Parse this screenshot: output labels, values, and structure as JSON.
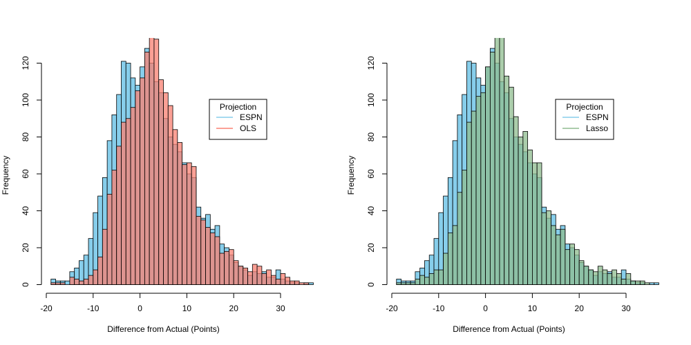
{
  "chart_data": [
    {
      "type": "histogram",
      "title": "",
      "xlabel": "Difference from Actual (Points)",
      "ylabel": "Frequency",
      "xlim": [
        -20,
        37
      ],
      "ylim": [
        0,
        130
      ],
      "xticks": [
        -20,
        -10,
        0,
        10,
        20,
        30
      ],
      "yticks": [
        0,
        20,
        40,
        60,
        80,
        100,
        120
      ],
      "bin_width": 1,
      "bin_start": -19,
      "legend": {
        "title": "Projection",
        "position": "right"
      },
      "series": [
        {
          "name": "ESPN",
          "color": "#87CEEB",
          "counts": [
            3,
            2,
            2,
            2,
            7,
            9,
            13,
            16,
            25,
            39,
            48,
            58,
            78,
            92,
            103,
            121,
            120,
            112,
            108,
            118,
            128,
            120,
            110,
            104,
            90,
            80,
            76,
            72,
            66,
            60,
            58,
            42,
            36,
            38,
            30,
            32,
            22,
            20,
            16,
            12,
            10,
            8,
            5,
            7,
            6,
            7,
            4,
            4,
            8,
            3,
            2,
            1,
            1,
            0,
            1,
            1,
            0,
            1
          ]
        },
        {
          "name": "OLS",
          "color": "#FA8072",
          "counts": [
            1,
            1,
            1,
            0,
            4,
            3,
            2,
            3,
            5,
            8,
            15,
            30,
            49,
            62,
            75,
            88,
            90,
            96,
            105,
            112,
            126,
            135,
            133,
            111,
            104,
            97,
            84,
            77,
            65,
            66,
            64,
            37,
            35,
            31,
            28,
            26,
            17,
            18,
            19,
            13,
            10,
            9,
            7,
            11,
            10,
            6,
            8,
            5,
            3,
            6,
            4,
            2,
            2,
            1,
            1,
            0,
            0,
            0
          ]
        }
      ]
    },
    {
      "type": "histogram",
      "title": "",
      "xlabel": "Difference from Actual (Points)",
      "ylabel": "Frequency",
      "xlim": [
        -20,
        37
      ],
      "ylim": [
        0,
        130
      ],
      "xticks": [
        -20,
        -10,
        0,
        10,
        20,
        30
      ],
      "yticks": [
        0,
        20,
        40,
        60,
        80,
        100,
        120
      ],
      "bin_width": 1,
      "bin_start": -19,
      "legend": {
        "title": "Projection",
        "position": "right"
      },
      "series": [
        {
          "name": "ESPN",
          "color": "#87CEEB",
          "counts": [
            3,
            2,
            2,
            2,
            7,
            9,
            13,
            16,
            25,
            39,
            48,
            58,
            78,
            92,
            103,
            121,
            120,
            112,
            108,
            118,
            128,
            120,
            110,
            104,
            90,
            80,
            76,
            72,
            66,
            60,
            58,
            42,
            36,
            38,
            30,
            32,
            22,
            20,
            16,
            12,
            10,
            8,
            5,
            7,
            6,
            7,
            4,
            4,
            8,
            3,
            2,
            1,
            1,
            0,
            1,
            1,
            0,
            1
          ]
        },
        {
          "name": "Lasso",
          "color": "#8FBC8F",
          "counts": [
            1,
            1,
            1,
            1,
            3,
            5,
            4,
            6,
            8,
            8,
            17,
            28,
            32,
            50,
            62,
            88,
            94,
            102,
            104,
            118,
            126,
            140,
            140,
            113,
            107,
            91,
            80,
            83,
            73,
            66,
            66,
            39,
            40,
            32,
            27,
            30,
            19,
            22,
            19,
            13,
            10,
            8,
            7,
            10,
            8,
            6,
            8,
            6,
            3,
            6,
            2,
            2,
            2,
            1,
            0,
            0,
            0,
            0
          ]
        }
      ]
    }
  ]
}
